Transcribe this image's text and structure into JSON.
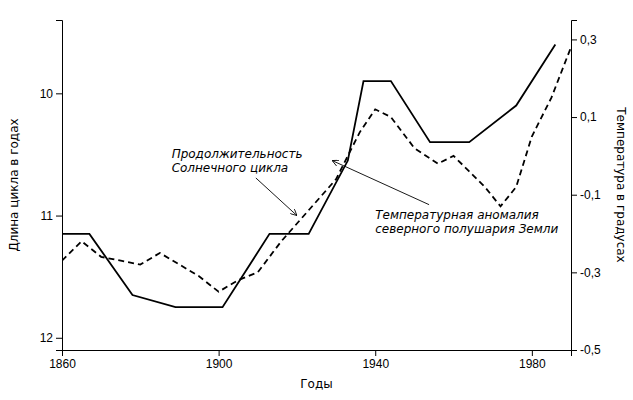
{
  "chart_data": {
    "type": "line",
    "xlabel": "Годы",
    "ylabel": "Длина цикла в годах",
    "y2label": "Температура в градусах",
    "xlim": [
      1860,
      1990
    ],
    "xticks": [
      1860,
      1900,
      1940,
      1980
    ],
    "ylim": [
      12.1,
      9.4
    ],
    "yticks": [
      10,
      11,
      12
    ],
    "y2lim": [
      -0.5,
      0.35
    ],
    "y2ticks": [
      {
        "value": -0.5,
        "label": "-0,5"
      },
      {
        "value": -0.3,
        "label": "-0,3"
      },
      {
        "value": -0.1,
        "label": "-0,1"
      },
      {
        "value": 0.1,
        "label": "0,1"
      },
      {
        "value": 0.3,
        "label": "0,3"
      }
    ],
    "grid": false,
    "series": [
      {
        "x": [
          1860,
          1867,
          1878,
          1889,
          1901,
          1913,
          1923,
          1933,
          1937,
          1944,
          1954,
          1964,
          1976,
          1986
        ],
        "values": [
          11.15,
          11.15,
          11.65,
          11.75,
          11.75,
          11.15,
          11.15,
          10.55,
          9.9,
          9.9,
          10.4,
          10.4,
          10.1,
          9.6
        ],
        "color": "#000000",
        "line_style": "solid"
      },
      {
        "x": [
          1860,
          1865,
          1870,
          1875,
          1880,
          1885,
          1890,
          1895,
          1900,
          1905,
          1910,
          1916,
          1923,
          1930,
          1936,
          1940,
          1944,
          1950,
          1956,
          1960,
          1964,
          1968,
          1972,
          1976,
          1980,
          1985,
          1990
        ],
        "values": [
          -0.27,
          -0.22,
          -0.26,
          -0.27,
          -0.28,
          -0.25,
          -0.28,
          -0.31,
          -0.35,
          -0.32,
          -0.3,
          -0.22,
          -0.14,
          -0.06,
          0.06,
          0.12,
          0.1,
          0.02,
          -0.02,
          0.0,
          -0.04,
          -0.08,
          -0.13,
          -0.08,
          0.05,
          0.15,
          0.28
        ],
        "color": "#000000",
        "line_style": "dashed",
        "axis": "y2"
      }
    ],
    "annotations": [
      {
        "text": "Продолжительность\nСолнечного цикла",
        "x": 1920,
        "y": 11.0,
        "text_x": 1888,
        "text_y": 10.55
      },
      {
        "text": "Температурная аномалия\nсеверного полушария Земли",
        "x": 1929,
        "y": 10.55,
        "text_x": 1940,
        "text_y": 11.05
      }
    ]
  }
}
